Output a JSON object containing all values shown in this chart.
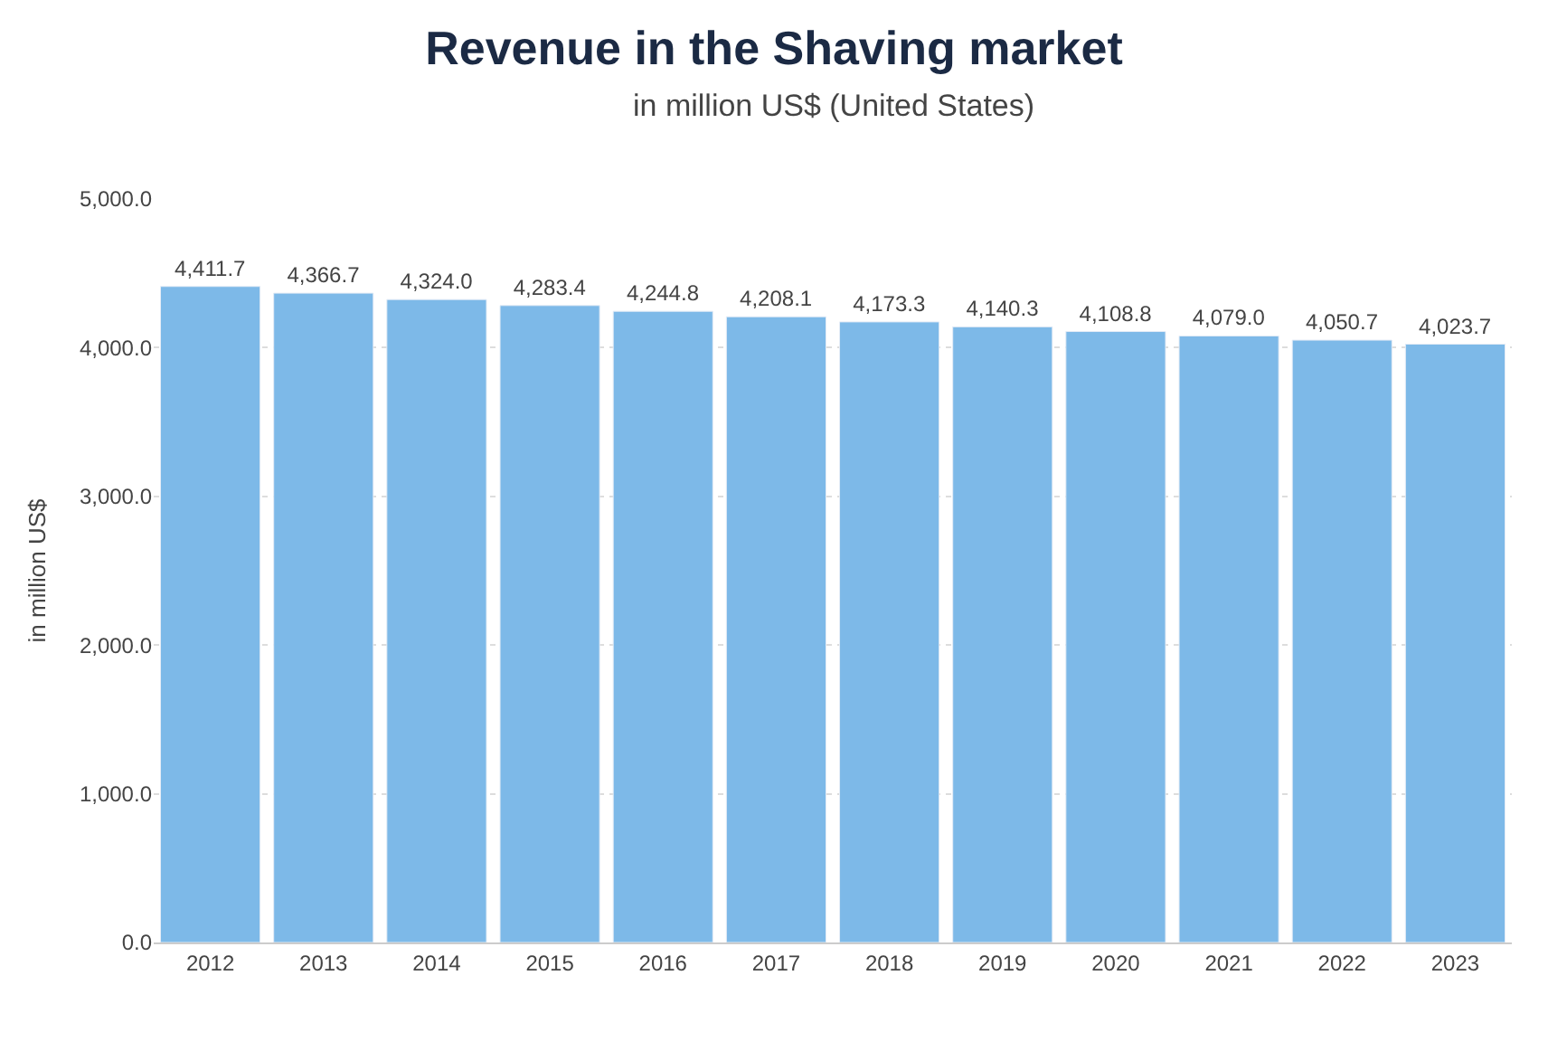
{
  "chart_data": {
    "type": "bar",
    "title": "Revenue in the Shaving market",
    "subtitle": "in million US$ (United States)",
    "ylabel": "in million US$",
    "categories": [
      "2012",
      "2013",
      "2014",
      "2015",
      "2016",
      "2017",
      "2018",
      "2019",
      "2020",
      "2021",
      "2022",
      "2023"
    ],
    "values": [
      4411.7,
      4366.7,
      4324.0,
      4283.4,
      4244.8,
      4208.1,
      4173.3,
      4140.3,
      4108.8,
      4079.0,
      4050.7,
      4023.7
    ],
    "value_labels": [
      "4,411.7",
      "4,366.7",
      "4,324.0",
      "4,283.4",
      "4,244.8",
      "4,208.1",
      "4,173.3",
      "4,140.3",
      "4,108.8",
      "4,079.0",
      "4,050.7",
      "4,023.7"
    ],
    "color": "#7db9e8",
    "ylim": [
      0,
      5000
    ],
    "yticks": [
      {
        "value": 0,
        "label": "0.0"
      },
      {
        "value": 1000,
        "label": "1,000.0"
      },
      {
        "value": 2000,
        "label": "2,000.0"
      },
      {
        "value": 3000,
        "label": "3,000.0"
      },
      {
        "value": 4000,
        "label": "4,000.0"
      },
      {
        "value": 5000,
        "label": "5,000.0"
      }
    ],
    "grid": "y",
    "legend": false
  }
}
